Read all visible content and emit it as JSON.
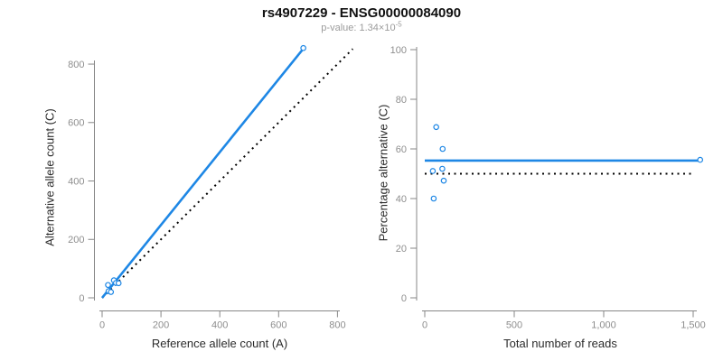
{
  "colors": {
    "accent_blue": "#1e87e5",
    "line_black": "#000000",
    "axis_line": "#878787",
    "tick_label": "#8e8e8e",
    "axis_title": "#2b2b2b",
    "title_text": "#111111",
    "subtitle_text": "#9b9b9b"
  },
  "chart_data": [
    {
      "type": "scatter",
      "panel": "left",
      "title": "rs4907229 - ENSG00000084090",
      "subtitle_base": "p-value: 1.34×10",
      "subtitle_exponent": "-5",
      "xlabel": "Reference allele count (A)",
      "ylabel": "Alternative allele count (C)",
      "xlim": [
        0,
        800
      ],
      "ylim": [
        0,
        800
      ],
      "xticks": [
        0,
        200,
        400,
        600,
        800
      ],
      "xtick_labels": [
        "0",
        "200",
        "400",
        "600",
        "800"
      ],
      "yticks": [
        0,
        200,
        400,
        600,
        800
      ],
      "ytick_labels": [
        "0",
        "200",
        "400",
        "600",
        "800"
      ],
      "grid": false,
      "legend": "none",
      "x_field": "reference_allele_count",
      "y_field": "alternative_allele_count",
      "point_color": "#1e87e5",
      "points": [
        [
          20,
          44
        ],
        [
          40,
          60
        ],
        [
          22,
          23
        ],
        [
          47,
          51
        ],
        [
          56,
          50
        ],
        [
          30,
          20
        ],
        [
          684,
          855
        ]
      ],
      "lines": [
        {
          "name": "identity-line",
          "role": "1:1 reference line",
          "x1": 0,
          "y1": 0,
          "x2": 852,
          "y2": 852,
          "style": "dotted",
          "color": "#000000",
          "width": 2
        },
        {
          "name": "fit-line",
          "role": "fitted allelic ratio",
          "x1": 0,
          "y1": 0,
          "x2": 688,
          "y2": 858,
          "style": "solid",
          "color": "#1e87e5",
          "width": 2.6
        }
      ]
    },
    {
      "type": "scatter",
      "panel": "right",
      "xlabel": "Total number of reads",
      "ylabel": "Percentage alternative (C)",
      "xlim": [
        0,
        1500
      ],
      "ylim": [
        0,
        100
      ],
      "xticks": [
        0,
        500,
        1000,
        1500
      ],
      "xtick_labels": [
        "0",
        "500",
        "1,000",
        "1,500"
      ],
      "yticks": [
        0,
        20,
        40,
        60,
        80,
        100
      ],
      "ytick_labels": [
        "0",
        "20",
        "40",
        "60",
        "80",
        "100"
      ],
      "grid": false,
      "legend": "none",
      "x_field": "total_reads",
      "y_field": "percentage_alternative",
      "point_color": "#1e87e5",
      "points": [
        [
          64,
          68.8
        ],
        [
          100,
          60
        ],
        [
          45,
          51.1
        ],
        [
          98,
          52
        ],
        [
          106,
          47.2
        ],
        [
          50,
          40
        ],
        [
          1539,
          55.6
        ]
      ],
      "lines": [
        {
          "name": "expected-line",
          "role": "50% expectation",
          "x1": 0,
          "y1": 50,
          "x2": 1500,
          "y2": 50,
          "style": "dotted",
          "color": "#000000",
          "width": 2
        },
        {
          "name": "fit-line",
          "role": "mean percentage alternative",
          "x1": 0,
          "y1": 55.3,
          "x2": 1545,
          "y2": 55.3,
          "style": "solid",
          "color": "#1e87e5",
          "width": 2.6
        }
      ]
    }
  ]
}
